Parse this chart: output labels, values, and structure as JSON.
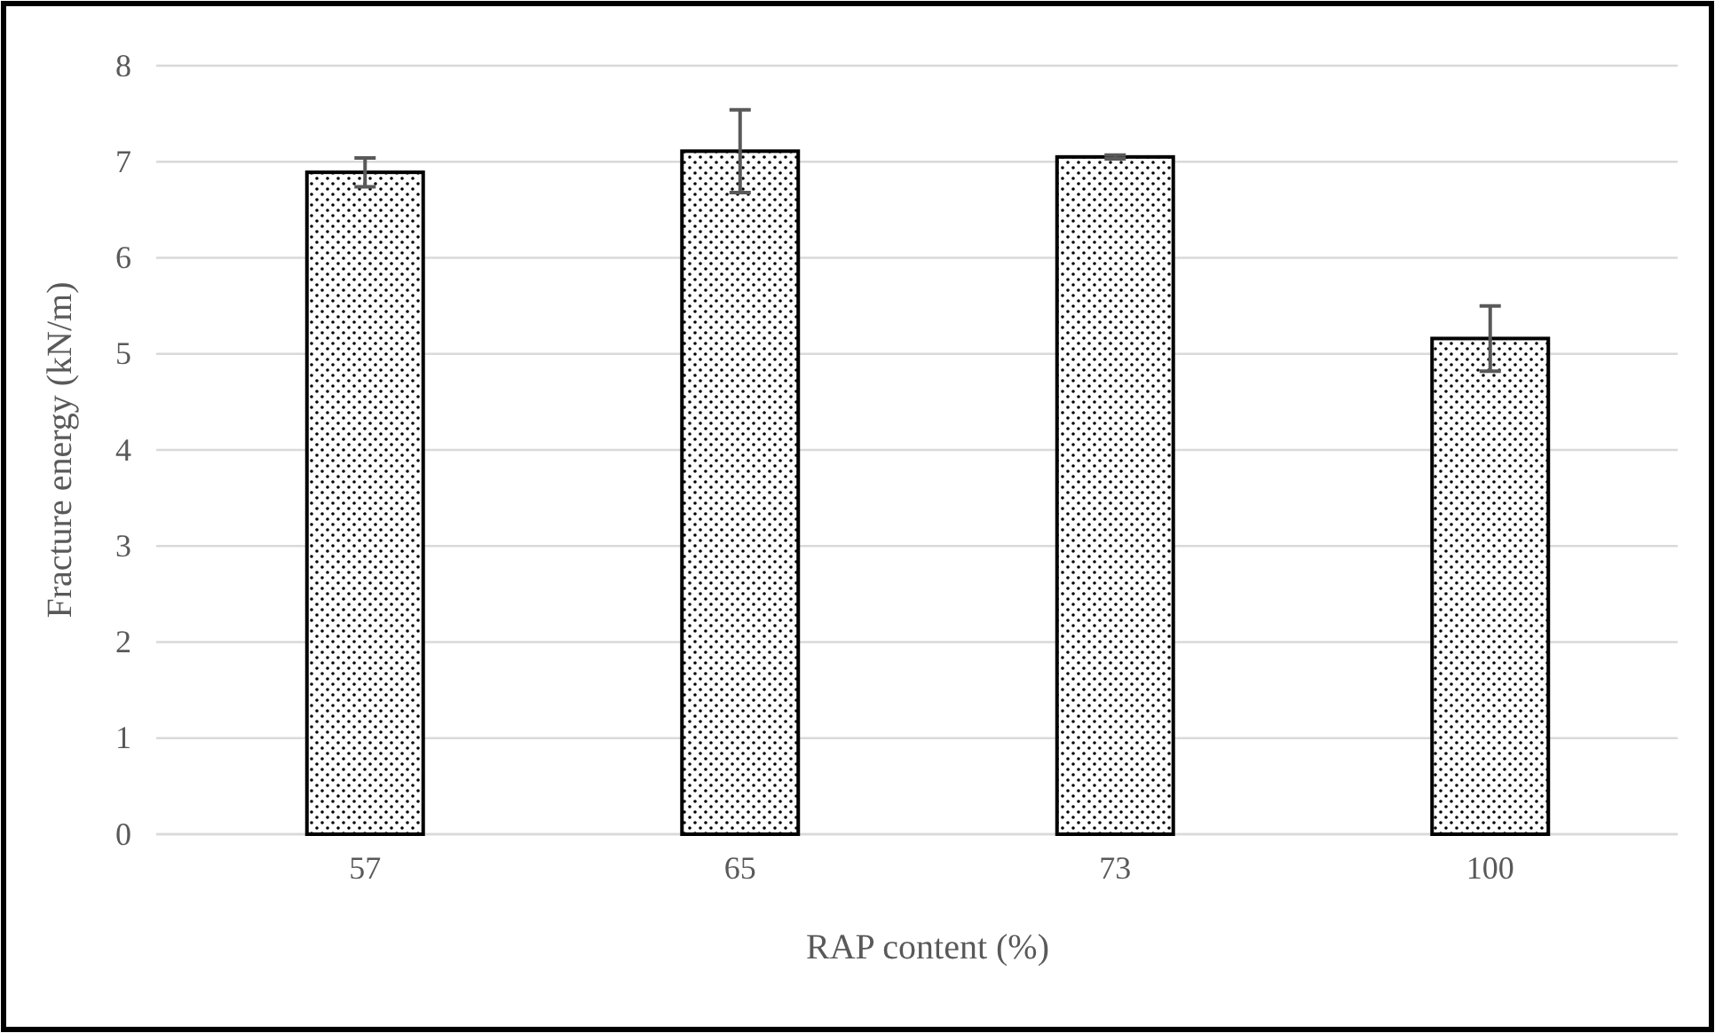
{
  "chart_data": {
    "type": "bar",
    "xlabel": "RAP content (%)",
    "ylabel": "Fracture energy (kN/m)",
    "categories": [
      "57",
      "65",
      "73",
      "100"
    ],
    "values": [
      6.89,
      7.11,
      7.05,
      5.16
    ],
    "errors": [
      0.15,
      0.43,
      0.02,
      0.34
    ],
    "ylim": [
      0,
      8
    ],
    "yticks": [
      0,
      1,
      2,
      3,
      4,
      5,
      6,
      7,
      8
    ],
    "grid": "y"
  }
}
